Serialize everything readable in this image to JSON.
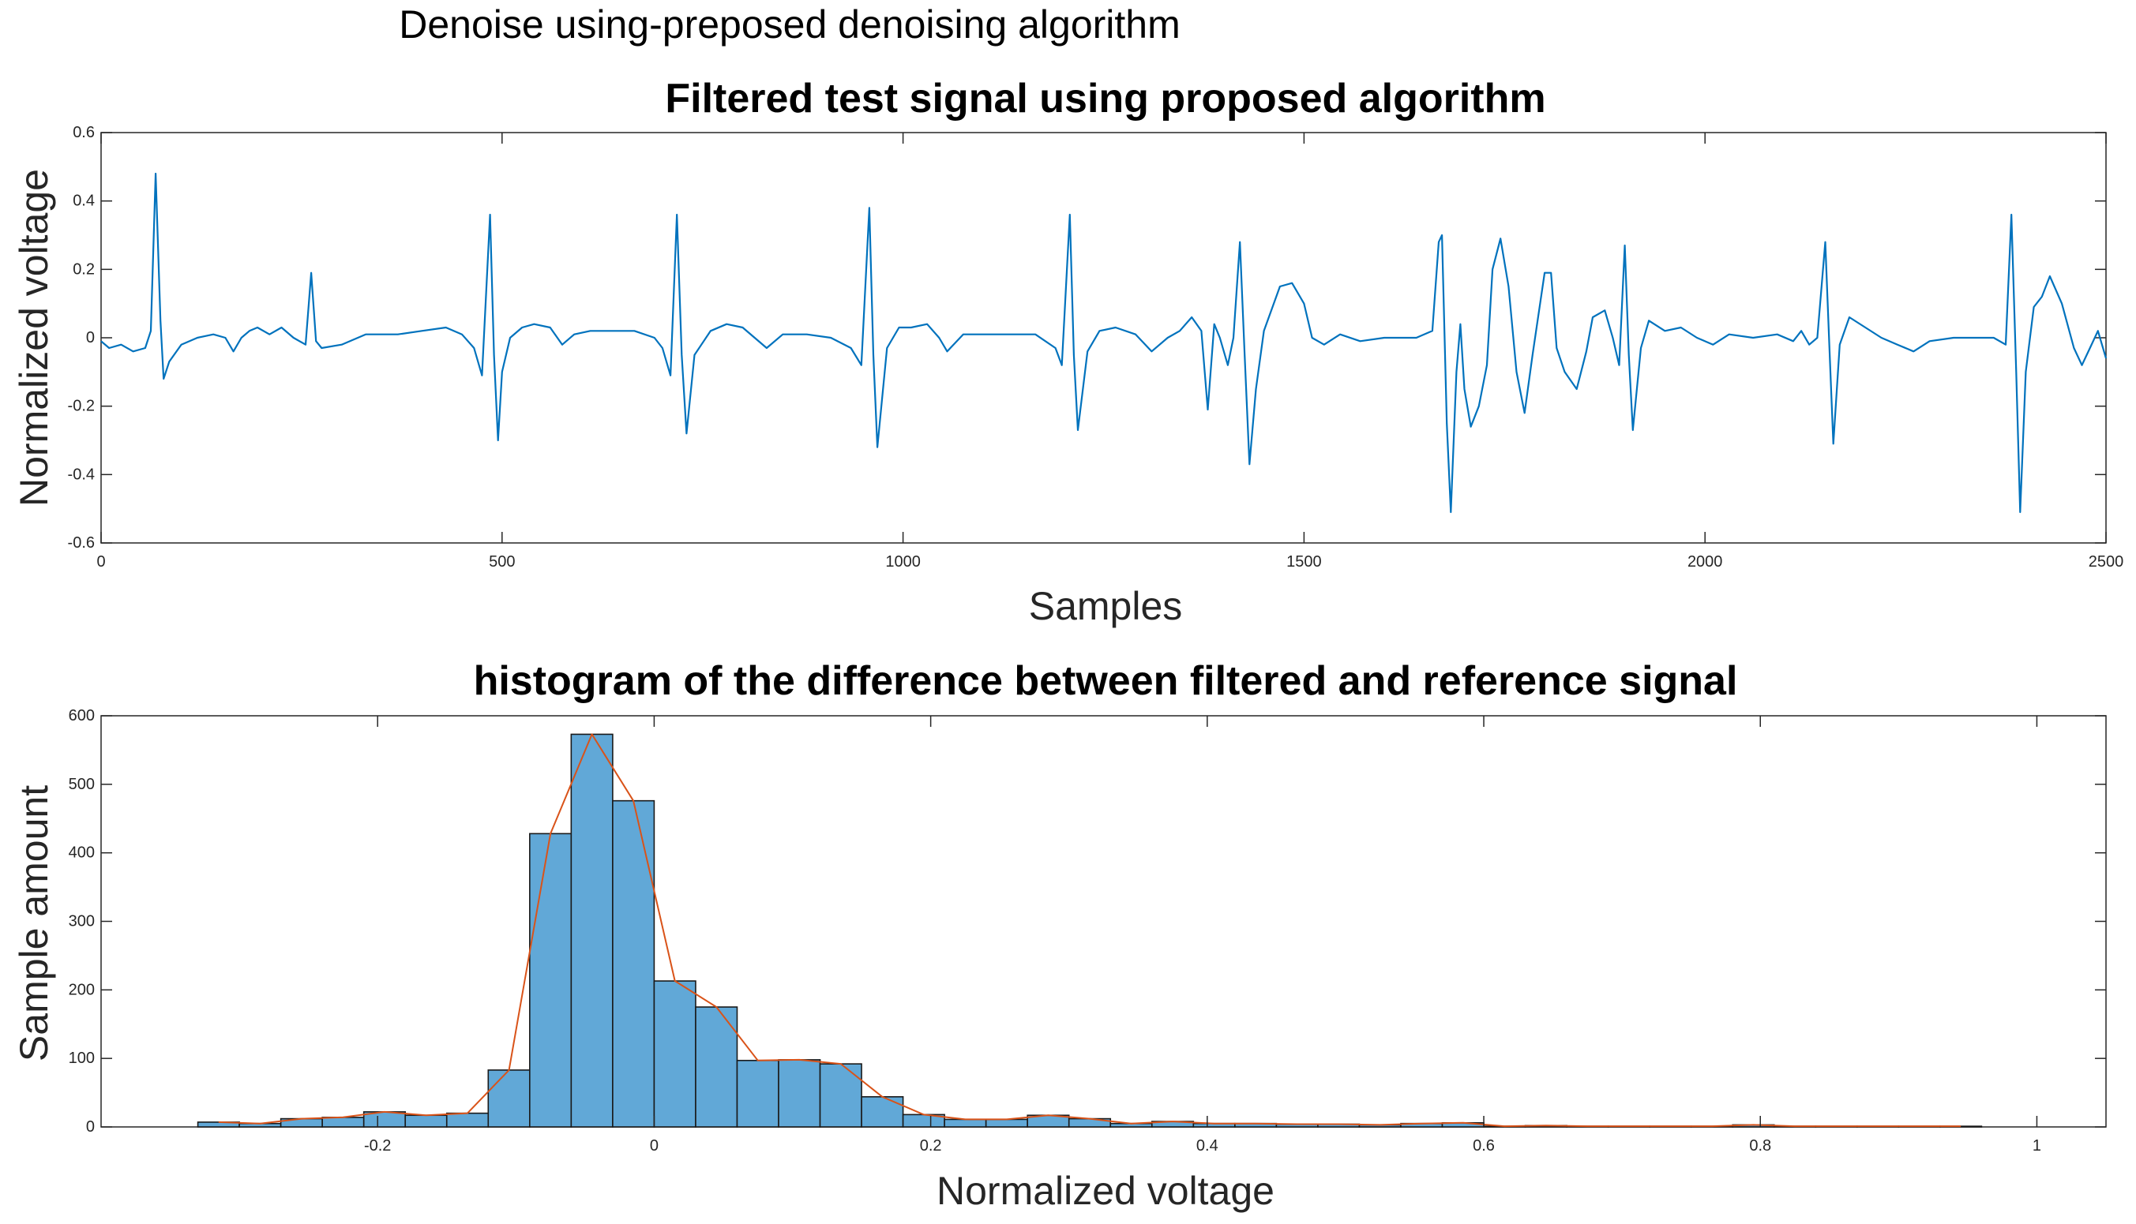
{
  "figure": {
    "suptitle": "Denoise using-preposed denoising algorithm"
  },
  "colors": {
    "signal_line": "#0072BD",
    "bar_fill": "#61A8D7",
    "bar_edge": "#1A1A1A",
    "overlay_line": "#D95319",
    "axis": "#262626",
    "background": "#FFFFFF"
  },
  "chart_data": [
    {
      "type": "line",
      "title": "Filtered test signal using proposed algorithm",
      "xlabel": "Samples",
      "ylabel": "Normalized voltage",
      "xlim": [
        0,
        2500
      ],
      "ylim": [
        -0.6,
        0.6
      ],
      "xticks": [
        0,
        500,
        1000,
        1500,
        2000,
        2500
      ],
      "xtick_labels": [
        "0",
        "500",
        "1000",
        "1500",
        "2000",
        "2500"
      ],
      "yticks": [
        -0.6,
        -0.4,
        -0.2,
        0,
        0.2,
        0.4,
        0.6
      ],
      "ytick_labels": [
        "-0.6",
        "-0.4",
        "-0.2",
        "0",
        "0.2",
        "0.4",
        "0.6"
      ],
      "grid": false,
      "series": [
        {
          "name": "filtered signal",
          "points": [
            [
              0,
              -0.01
            ],
            [
              10,
              -0.03
            ],
            [
              25,
              -0.02
            ],
            [
              40,
              -0.04
            ],
            [
              55,
              -0.03
            ],
            [
              62,
              0.02
            ],
            [
              68,
              0.48
            ],
            [
              74,
              0.05
            ],
            [
              78,
              -0.12
            ],
            [
              85,
              -0.07
            ],
            [
              100,
              -0.02
            ],
            [
              120,
              0.0
            ],
            [
              140,
              0.01
            ],
            [
              155,
              0.0
            ],
            [
              165,
              -0.04
            ],
            [
              175,
              0.0
            ],
            [
              185,
              0.02
            ],
            [
              195,
              0.03
            ],
            [
              210,
              0.01
            ],
            [
              225,
              0.03
            ],
            [
              240,
              0.0
            ],
            [
              255,
              -0.02
            ],
            [
              262,
              0.19
            ],
            [
              268,
              -0.01
            ],
            [
              275,
              -0.03
            ],
            [
              300,
              -0.02
            ],
            [
              330,
              0.01
            ],
            [
              370,
              0.01
            ],
            [
              400,
              0.02
            ],
            [
              430,
              0.03
            ],
            [
              450,
              0.01
            ],
            [
              465,
              -0.03
            ],
            [
              475,
              -0.11
            ],
            [
              485,
              0.36
            ],
            [
              490,
              -0.05
            ],
            [
              495,
              -0.3
            ],
            [
              500,
              -0.1
            ],
            [
              510,
              0.0
            ],
            [
              525,
              0.03
            ],
            [
              540,
              0.04
            ],
            [
              560,
              0.03
            ],
            [
              575,
              -0.02
            ],
            [
              590,
              0.01
            ],
            [
              610,
              0.02
            ],
            [
              640,
              0.02
            ],
            [
              665,
              0.02
            ],
            [
              690,
              0.0
            ],
            [
              700,
              -0.03
            ],
            [
              710,
              -0.11
            ],
            [
              718,
              0.36
            ],
            [
              724,
              -0.05
            ],
            [
              730,
              -0.28
            ],
            [
              740,
              -0.05
            ],
            [
              760,
              0.02
            ],
            [
              780,
              0.04
            ],
            [
              800,
              0.03
            ],
            [
              815,
              0.0
            ],
            [
              830,
              -0.03
            ],
            [
              850,
              0.01
            ],
            [
              880,
              0.01
            ],
            [
              910,
              0.0
            ],
            [
              935,
              -0.03
            ],
            [
              948,
              -0.08
            ],
            [
              958,
              0.38
            ],
            [
              963,
              -0.05
            ],
            [
              968,
              -0.32
            ],
            [
              980,
              -0.03
            ],
            [
              995,
              0.03
            ],
            [
              1010,
              0.03
            ],
            [
              1030,
              0.04
            ],
            [
              1045,
              0.0
            ],
            [
              1055,
              -0.04
            ],
            [
              1075,
              0.01
            ],
            [
              1100,
              0.01
            ],
            [
              1130,
              0.01
            ],
            [
              1165,
              0.01
            ],
            [
              1190,
              -0.03
            ],
            [
              1198,
              -0.08
            ],
            [
              1208,
              0.36
            ],
            [
              1213,
              -0.05
            ],
            [
              1218,
              -0.27
            ],
            [
              1230,
              -0.04
            ],
            [
              1245,
              0.02
            ],
            [
              1265,
              0.03
            ],
            [
              1290,
              0.01
            ],
            [
              1310,
              -0.04
            ],
            [
              1330,
              0.0
            ],
            [
              1345,
              0.02
            ],
            [
              1360,
              0.06
            ],
            [
              1372,
              0.02
            ],
            [
              1380,
              -0.21
            ],
            [
              1388,
              0.04
            ],
            [
              1395,
              0.0
            ],
            [
              1405,
              -0.08
            ],
            [
              1412,
              0.0
            ],
            [
              1420,
              0.28
            ],
            [
              1426,
              -0.05
            ],
            [
              1432,
              -0.37
            ],
            [
              1440,
              -0.15
            ],
            [
              1450,
              0.02
            ],
            [
              1470,
              0.15
            ],
            [
              1485,
              0.16
            ],
            [
              1500,
              0.1
            ],
            [
              1510,
              0.0
            ],
            [
              1525,
              -0.02
            ],
            [
              1545,
              0.01
            ],
            [
              1570,
              -0.01
            ],
            [
              1600,
              0.0
            ],
            [
              1640,
              0.0
            ],
            [
              1660,
              0.02
            ],
            [
              1668,
              0.28
            ],
            [
              1672,
              0.3
            ],
            [
              1678,
              -0.25
            ],
            [
              1683,
              -0.51
            ],
            [
              1690,
              -0.1
            ],
            [
              1695,
              0.04
            ],
            [
              1700,
              -0.15
            ],
            [
              1708,
              -0.26
            ],
            [
              1718,
              -0.2
            ],
            [
              1728,
              -0.08
            ],
            [
              1735,
              0.2
            ],
            [
              1745,
              0.29
            ],
            [
              1755,
              0.15
            ],
            [
              1765,
              -0.1
            ],
            [
              1775,
              -0.22
            ],
            [
              1785,
              -0.05
            ],
            [
              1800,
              0.19
            ],
            [
              1808,
              0.19
            ],
            [
              1815,
              -0.03
            ],
            [
              1825,
              -0.1
            ],
            [
              1840,
              -0.15
            ],
            [
              1852,
              -0.04
            ],
            [
              1860,
              0.06
            ],
            [
              1875,
              0.08
            ],
            [
              1885,
              0.0
            ],
            [
              1893,
              -0.08
            ],
            [
              1900,
              0.27
            ],
            [
              1905,
              -0.05
            ],
            [
              1910,
              -0.27
            ],
            [
              1920,
              -0.03
            ],
            [
              1930,
              0.05
            ],
            [
              1950,
              0.02
            ],
            [
              1970,
              0.03
            ],
            [
              1990,
              0.0
            ],
            [
              2010,
              -0.02
            ],
            [
              2030,
              0.01
            ],
            [
              2060,
              0.0
            ],
            [
              2090,
              0.01
            ],
            [
              2110,
              -0.01
            ],
            [
              2120,
              0.02
            ],
            [
              2130,
              -0.02
            ],
            [
              2140,
              0.0
            ],
            [
              2150,
              0.28
            ],
            [
              2155,
              -0.02
            ],
            [
              2160,
              -0.31
            ],
            [
              2168,
              -0.02
            ],
            [
              2180,
              0.06
            ],
            [
              2200,
              0.03
            ],
            [
              2220,
              0.0
            ],
            [
              2240,
              -0.02
            ],
            [
              2260,
              -0.04
            ],
            [
              2280,
              -0.01
            ],
            [
              2310,
              0.0
            ],
            [
              2340,
              0.0
            ],
            [
              2360,
              0.0
            ],
            [
              2375,
              -0.02
            ],
            [
              2382,
              0.36
            ],
            [
              2388,
              -0.1
            ],
            [
              2393,
              -0.51
            ],
            [
              2400,
              -0.1
            ],
            [
              2410,
              0.09
            ],
            [
              2420,
              0.12
            ],
            [
              2430,
              0.18
            ],
            [
              2445,
              0.1
            ],
            [
              2460,
              -0.03
            ],
            [
              2470,
              -0.08
            ],
            [
              2480,
              -0.03
            ],
            [
              2490,
              0.02
            ],
            [
              2500,
              -0.06
            ]
          ]
        }
      ]
    },
    {
      "type": "bar",
      "title": "histogram of the difference between filtered and reference signal",
      "xlabel": "Normalized voltage",
      "ylabel": "Sample amount",
      "xlim": [
        -0.4,
        1.05
      ],
      "ylim": [
        0,
        600
      ],
      "xticks": [
        -0.2,
        0,
        0.2,
        0.4,
        0.6,
        0.8,
        1
      ],
      "xtick_labels": [
        "-0.2",
        "0",
        "0.2",
        "0.4",
        "0.6",
        "0.8",
        "1"
      ],
      "yticks": [
        0,
        100,
        200,
        300,
        400,
        500,
        600
      ],
      "ytick_labels": [
        "0",
        "100",
        "200",
        "300",
        "400",
        "500",
        "600"
      ],
      "grid": false,
      "bin_width": 0.03,
      "bin_start": -0.33,
      "values": [
        7,
        5,
        12,
        14,
        22,
        17,
        20,
        83,
        428,
        573,
        476,
        213,
        175,
        97,
        98,
        92,
        44,
        18,
        11,
        11,
        17,
        12,
        5,
        8,
        5,
        5,
        4,
        4,
        3,
        5,
        6,
        1,
        2,
        1,
        1,
        1,
        1,
        3,
        1,
        1,
        1,
        1,
        1
      ],
      "overlay": {
        "name": "distribution curve",
        "type": "line"
      }
    }
  ]
}
